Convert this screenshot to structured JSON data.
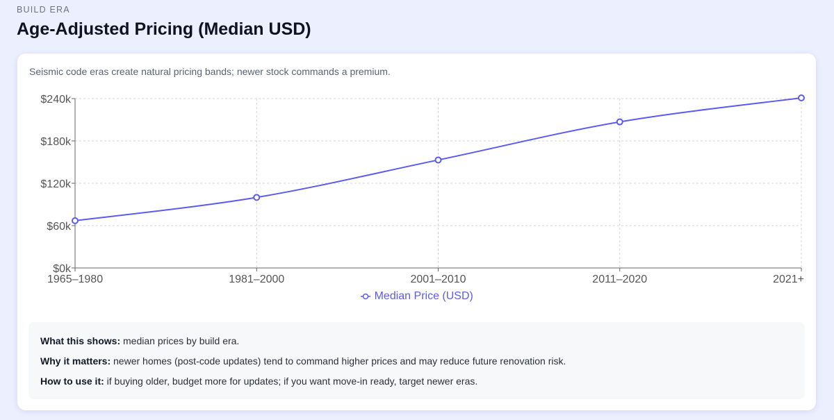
{
  "header": {
    "eyebrow": "BUILD ERA",
    "title": "Age-Adjusted Pricing (Median USD)"
  },
  "card": {
    "subtitle": "Seismic code eras create natural pricing bands; newer stock commands a premium."
  },
  "chart_data": {
    "type": "line",
    "categories": [
      "1965–1980",
      "1981–2000",
      "2001–2010",
      "2011–2020",
      "2021+"
    ],
    "series": [
      {
        "name": "Median Price (USD)",
        "values": [
          67000,
          100000,
          153000,
          207000,
          241000
        ],
        "color": "#5b5bf0"
      }
    ],
    "ylim": [
      0,
      240000
    ],
    "yticks": [
      0,
      60000,
      120000,
      180000,
      240000
    ],
    "ytick_labels": [
      "$0k",
      "$60k",
      "$120k",
      "$180k",
      "$240k"
    ],
    "grid": true,
    "legend": "bottom"
  },
  "notes": [
    {
      "label": "What this shows:",
      "text": " median prices by build era."
    },
    {
      "label": "Why it matters:",
      "text": " newer homes (post-code updates) tend to command higher prices and may reduce future renovation risk."
    },
    {
      "label": "How to use it:",
      "text": " if buying older, budget more for updates; if you want move-in ready, target newer eras."
    }
  ]
}
